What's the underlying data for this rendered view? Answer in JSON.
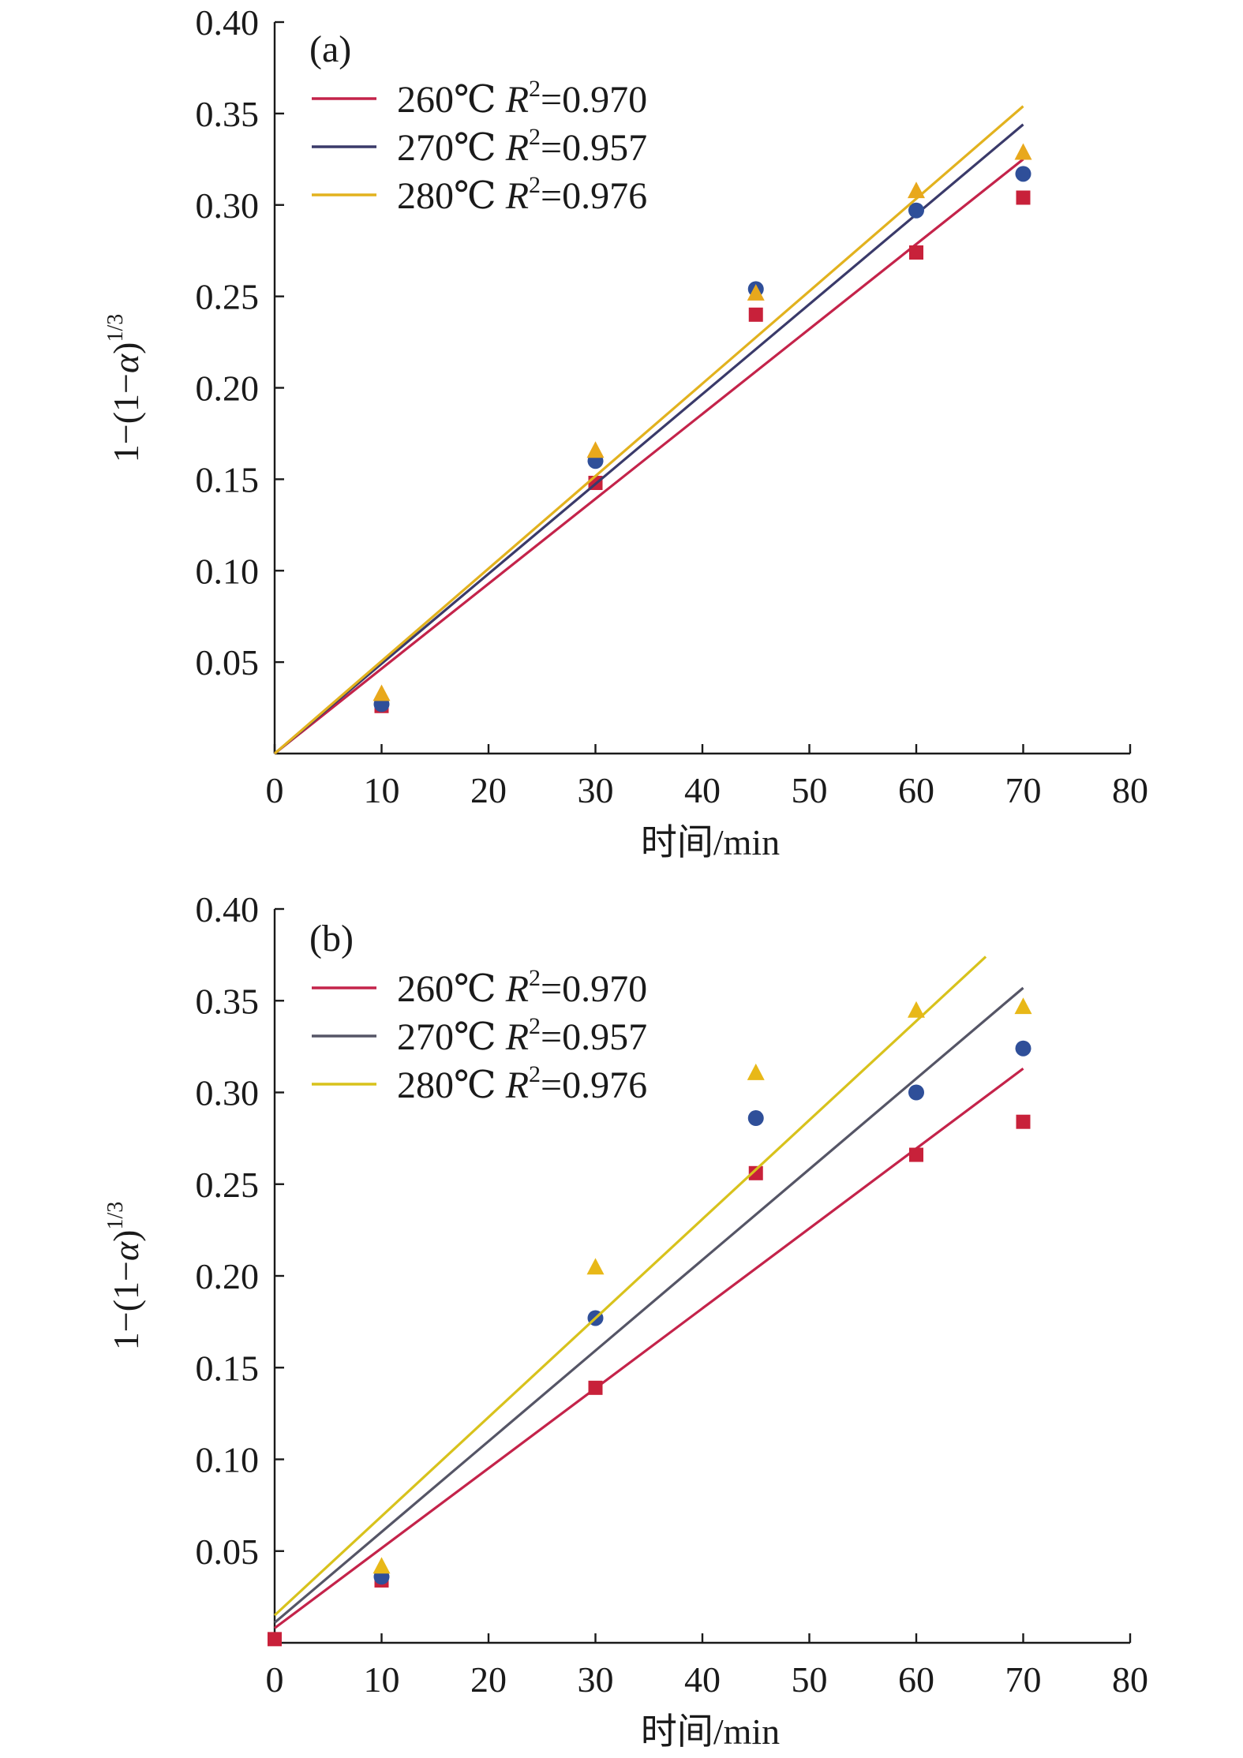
{
  "chart_data": [
    {
      "type": "scatter",
      "panel_label": "(a)",
      "xlabel": "时间/min",
      "ylabel_parts": {
        "pre": "1−(1−",
        "var": "α",
        "post": ")",
        "sup": "1/3"
      },
      "xlim": [
        0,
        80
      ],
      "ylim": [
        0,
        0.4
      ],
      "xticks": [
        "0",
        "10",
        "20",
        "30",
        "40",
        "50",
        "60",
        "70",
        "80"
      ],
      "yticks": [
        "0.05",
        "0.10",
        "0.15",
        "0.20",
        "0.25",
        "0.30",
        "0.35",
        "0.40"
      ],
      "xtick_values": [
        0,
        10,
        20,
        30,
        40,
        50,
        60,
        70,
        80
      ],
      "ytick_values": [
        0.05,
        0.1,
        0.15,
        0.2,
        0.25,
        0.3,
        0.35,
        0.4
      ],
      "legend_position": "top-left",
      "series": [
        {
          "name": "260℃",
          "r2_label": "R",
          "r2_sup": "2",
          "r2_value": "=0.970",
          "color": "#c8213a",
          "line_color": "#c4234a",
          "marker": "square",
          "x": [
            10,
            30,
            45,
            60,
            70
          ],
          "y": [
            0.026,
            0.148,
            0.24,
            0.274,
            0.304
          ],
          "fit": [
            [
              0,
              0
            ],
            [
              70,
              0.325
            ]
          ]
        },
        {
          "name": "270℃",
          "r2_label": "R",
          "r2_sup": "2",
          "r2_value": "=0.957",
          "color": "#2f4f99",
          "line_color": "#3a3a6a",
          "marker": "circle",
          "x": [
            10,
            30,
            45,
            60,
            70
          ],
          "y": [
            0.027,
            0.16,
            0.254,
            0.297,
            0.317
          ],
          "fit": [
            [
              0,
              0
            ],
            [
              70,
              0.344
            ]
          ]
        },
        {
          "name": "280℃",
          "r2_label": "R",
          "r2_sup": "2",
          "r2_value": "=0.976",
          "color": "#e8a81c",
          "line_color": "#e2b21e",
          "marker": "triangle",
          "x": [
            10,
            30,
            45,
            60,
            70
          ],
          "y": [
            0.033,
            0.166,
            0.252,
            0.308,
            0.329
          ],
          "fit": [
            [
              0,
              0
            ],
            [
              70,
              0.354
            ]
          ]
        }
      ]
    },
    {
      "type": "scatter",
      "panel_label": "(b)",
      "xlabel": "时间/min",
      "ylabel_parts": {
        "pre": "1−(1−",
        "var": "α",
        "post": ")",
        "sup": "1/3"
      },
      "xlim": [
        0,
        80
      ],
      "ylim": [
        0,
        0.4
      ],
      "xticks": [
        "0",
        "10",
        "20",
        "30",
        "40",
        "50",
        "60",
        "70",
        "80"
      ],
      "yticks": [
        "0.05",
        "0.10",
        "0.15",
        "0.20",
        "0.25",
        "0.30",
        "0.35",
        "0.40"
      ],
      "xtick_values": [
        0,
        10,
        20,
        30,
        40,
        50,
        60,
        70,
        80
      ],
      "ytick_values": [
        0.05,
        0.1,
        0.15,
        0.2,
        0.25,
        0.3,
        0.35,
        0.4
      ],
      "legend_position": "top-left",
      "series": [
        {
          "name": "260℃",
          "r2_label": "R",
          "r2_sup": "2",
          "r2_value": "=0.970",
          "color": "#c8213a",
          "line_color": "#c4234a",
          "marker": "square",
          "x": [
            0,
            10,
            30,
            45,
            60,
            70
          ],
          "y": [
            0.002,
            0.034,
            0.139,
            0.256,
            0.266,
            0.284
          ],
          "fit": [
            [
              0,
              0.008
            ],
            [
              70,
              0.313
            ]
          ]
        },
        {
          "name": "270℃",
          "r2_label": "R",
          "r2_sup": "2",
          "r2_value": "=0.957",
          "color": "#2f4f99",
          "line_color": "#555566",
          "marker": "circle",
          "x": [
            10,
            30,
            45,
            60,
            70
          ],
          "y": [
            0.036,
            0.177,
            0.286,
            0.3,
            0.324
          ],
          "fit": [
            [
              0,
              0.011
            ],
            [
              70,
              0.357
            ]
          ]
        },
        {
          "name": "280℃",
          "r2_label": "R",
          "r2_sup": "2",
          "r2_value": "=0.976",
          "color": "#e8b818",
          "line_color": "#d8c21c",
          "marker": "triangle",
          "x": [
            10,
            30,
            45,
            60,
            70
          ],
          "y": [
            0.042,
            0.205,
            0.311,
            0.345,
            0.347
          ],
          "fit": [
            [
              0,
              0.015
            ],
            [
              66.5,
              0.374
            ]
          ]
        }
      ]
    }
  ]
}
